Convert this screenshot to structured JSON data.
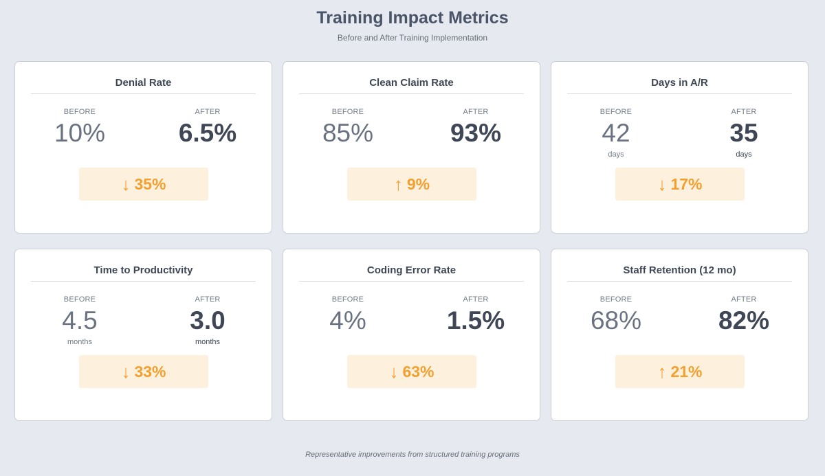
{
  "header": {
    "title": "Training Impact Metrics",
    "subtitle": "Before and After Training Implementation"
  },
  "labels": {
    "before": "BEFORE",
    "after": "AFTER"
  },
  "colors": {
    "background": "#e6e9f0",
    "accent": "#f3a031",
    "badge_background": "#fdf1de",
    "text_primary": "#3f4756",
    "text_muted": "#6a7282"
  },
  "metrics": [
    {
      "title": "Denial Rate",
      "before": "10%",
      "after": "6.5%",
      "before_unit": "",
      "after_unit": "",
      "direction_icon": "arrow-down-icon",
      "arrow": "↓",
      "change": "35%"
    },
    {
      "title": "Clean Claim Rate",
      "before": "85%",
      "after": "93%",
      "before_unit": "",
      "after_unit": "",
      "direction_icon": "arrow-up-icon",
      "arrow": "↑",
      "change": "9%"
    },
    {
      "title": "Days in A/R",
      "before": "42",
      "after": "35",
      "before_unit": "days",
      "after_unit": "days",
      "direction_icon": "arrow-down-icon",
      "arrow": "↓",
      "change": "17%"
    },
    {
      "title": "Time to Productivity",
      "before": "4.5",
      "after": "3.0",
      "before_unit": "months",
      "after_unit": "months",
      "direction_icon": "arrow-down-icon",
      "arrow": "↓",
      "change": "33%"
    },
    {
      "title": "Coding Error Rate",
      "before": "4%",
      "after": "1.5%",
      "before_unit": "",
      "after_unit": "",
      "direction_icon": "arrow-down-icon",
      "arrow": "↓",
      "change": "63%"
    },
    {
      "title": "Staff Retention (12 mo)",
      "before": "68%",
      "after": "82%",
      "before_unit": "",
      "after_unit": "",
      "direction_icon": "arrow-up-icon",
      "arrow": "↑",
      "change": "21%"
    }
  ],
  "footer": {
    "note": "Representative improvements from structured training programs"
  }
}
